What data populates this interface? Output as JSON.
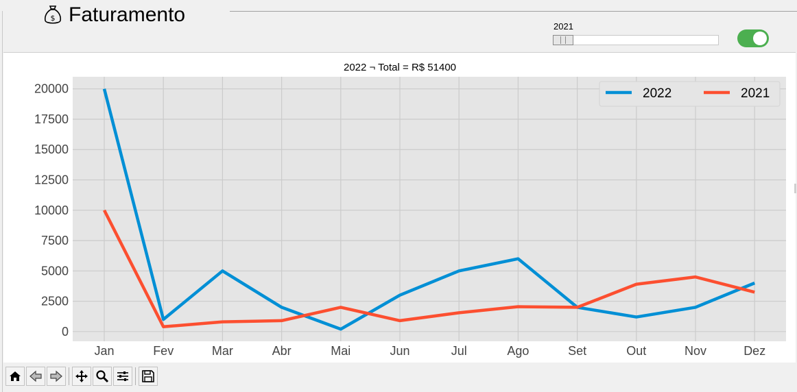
{
  "header": {
    "title": "Faturamento",
    "icon": "money-bag-icon"
  },
  "controls": {
    "year_slider_label": "2021",
    "toggle_on": true,
    "toggle_color": "#4caf50"
  },
  "toolbar": {
    "buttons": [
      "home-icon",
      "back-icon",
      "forward-icon",
      "pan-icon",
      "zoom-icon",
      "configure-subplots-icon",
      "save-icon"
    ]
  },
  "chart_data": {
    "type": "line",
    "title": "2022 ¬   Total = R$ 51400",
    "categories": [
      "Jan",
      "Fev",
      "Mar",
      "Abr",
      "Mai",
      "Jun",
      "Jul",
      "Ago",
      "Set",
      "Out",
      "Nov",
      "Dez"
    ],
    "series": [
      {
        "name": "2022",
        "color": "#008fd5",
        "values": [
          20000,
          1000,
          5000,
          2000,
          200,
          3000,
          5000,
          6000,
          2000,
          1200,
          2000,
          4000
        ]
      },
      {
        "name": "2021",
        "color": "#fc4f30",
        "values": [
          10000,
          400,
          800,
          900,
          2000,
          900,
          1550,
          2050,
          2000,
          3900,
          4500,
          3250
        ]
      }
    ],
    "yticks": [
      "0",
      "2500",
      "5000",
      "7500",
      "10000",
      "12500",
      "15000",
      "17500",
      "20000"
    ],
    "ylim": [
      -800,
      21000
    ],
    "grid": true,
    "legend_position": "top-right",
    "style": "fivethirtyeight"
  }
}
